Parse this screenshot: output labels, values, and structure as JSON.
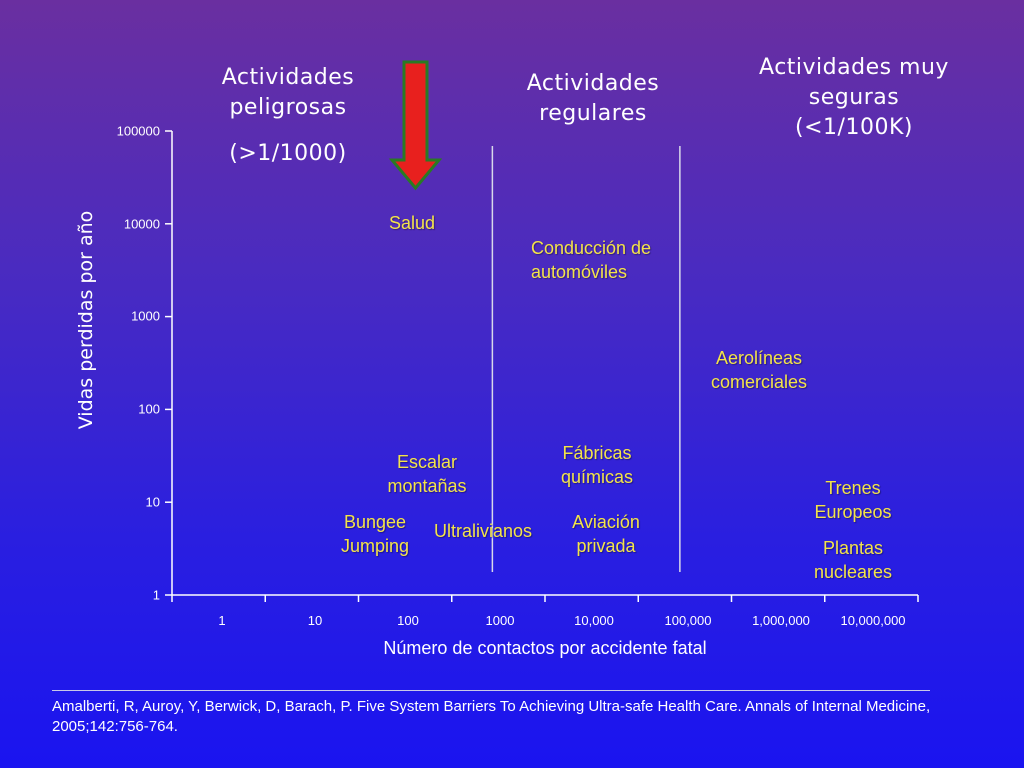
{
  "sections": {
    "dangerous": {
      "title_line1": "Actividades",
      "title_line2": "peligrosas",
      "range": "(>1/1000)"
    },
    "regular": {
      "title_line1": "Actividades",
      "title_line2": "regulares"
    },
    "very_safe": {
      "title_line1": "Actividades muy",
      "title_line2": "seguras",
      "range": "(<1/100K)"
    }
  },
  "chart_data": {
    "type": "scatter",
    "ylabel": "Vidas perdidas por año",
    "xlabel": "Número de contactos por accidente fatal",
    "y_ticks": [
      "100000",
      "10000",
      "1000",
      "100",
      "10",
      "1"
    ],
    "x_ticks": [
      "1",
      "10",
      "100",
      "1000",
      "10,000",
      "100,000",
      "1,000,000",
      "10,000,000"
    ],
    "x_scale": "log",
    "y_scale": "log",
    "xlim": [
      1,
      10000000
    ],
    "ylim": [
      1,
      100000
    ],
    "thresholds_x": [
      1000,
      100000
    ],
    "points": [
      {
        "label": "Salud",
        "x": 100,
        "y": 10000
      },
      {
        "label": "Conducción de automóviles",
        "x": 10000,
        "y": 6000
      },
      {
        "label": "Aerolíneas comerciales",
        "x": 1000000,
        "y": 300
      },
      {
        "label": "Escalar montañas",
        "x": 100,
        "y": 20
      },
      {
        "label": "Fábricas químicas",
        "x": 10000,
        "y": 25
      },
      {
        "label": "Trenes Europeos",
        "x": 10000000,
        "y": 10
      },
      {
        "label": "Bungee Jumping",
        "x": 10,
        "y": 3
      },
      {
        "label": "Ultralivianos",
        "x": 1000,
        "y": 3
      },
      {
        "label": "Aviación privada",
        "x": 10000,
        "y": 3
      },
      {
        "label": "Plantas nucleares",
        "x": 10000000,
        "y": 3
      }
    ],
    "arrow": {
      "color": "#e8201e",
      "outline": "#2a7a24",
      "target": "Salud"
    }
  },
  "labels": {
    "salud": "Salud",
    "conduccion_1": "Conducción de",
    "conduccion_2": "automóviles",
    "aerolineas_1": "Aerolíneas",
    "aerolineas_2": "comerciales",
    "escalar_1": "Escalar",
    "escalar_2": "montañas",
    "fabricas_1": "Fábricas",
    "fabricas_2": "químicas",
    "trenes_1": "Trenes",
    "trenes_2": "Europeos",
    "bungee_1": "Bungee",
    "bungee_2": "Jumping",
    "ultralivianos": "Ultralivianos",
    "aviacion_1": "Aviación",
    "aviacion_2": "privada",
    "plantas_1": "Plantas",
    "plantas_2": "nucleares"
  },
  "citation": "Amalberti, R, Auroy, Y, Berwick, D, Barach, P. Five System Barriers To Achieving Ultra-safe Health Care. Annals of Internal Medicine, 2005;142:756-764.",
  "colors": {
    "label_yellow": "#f3e34a",
    "axis": "#ffffff"
  }
}
